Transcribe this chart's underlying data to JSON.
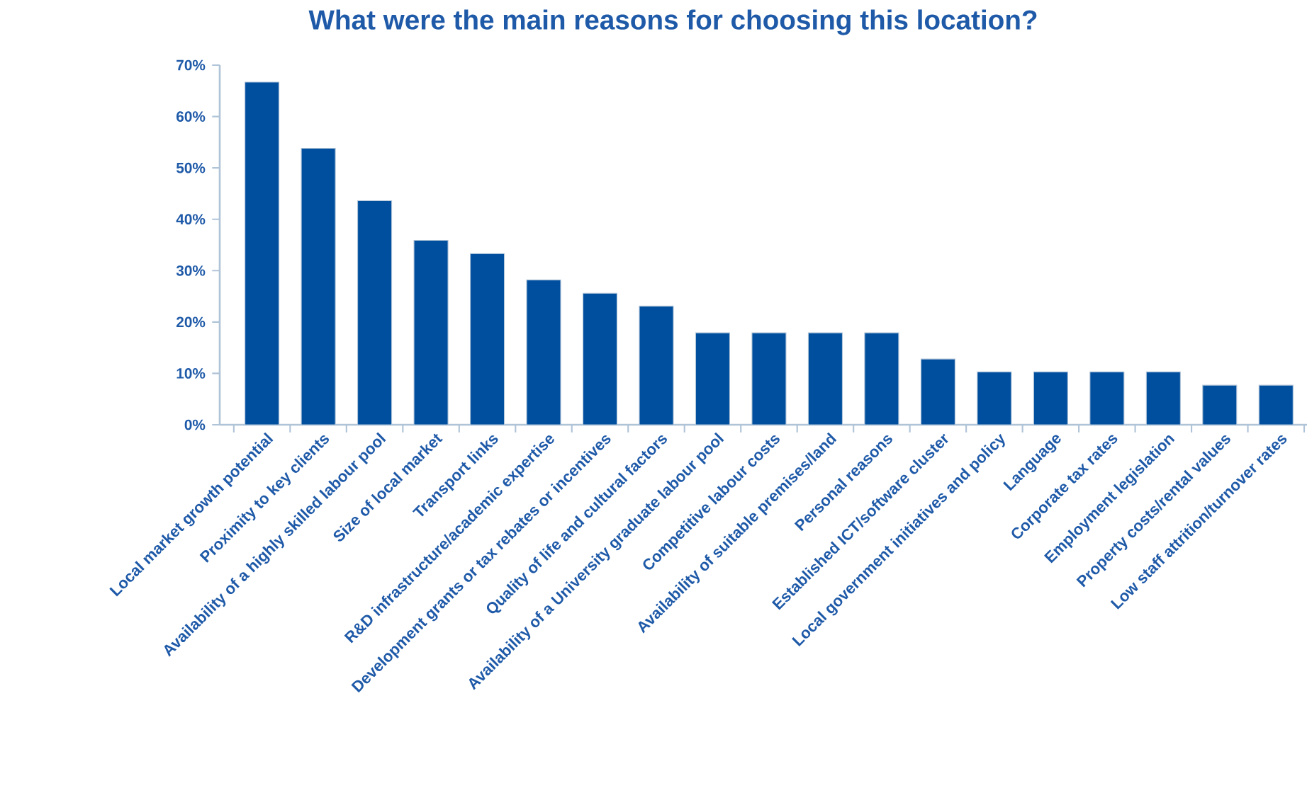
{
  "chart_data": {
    "type": "bar",
    "title": "What were the main reasons for choosing this location?",
    "categories": [
      "Local market  growth potential",
      "Proximity to key clients",
      "Availability of a highly skilled labour pool",
      "Size of local market",
      "Transport links",
      "R&D infrastructure/academic expertise",
      "Development grants or tax rebates or incentives",
      "Quality of life and cultural factors",
      "Availability of a University graduate labour pool",
      "Competitive labour costs",
      "Availability of suitable premises/land",
      "Personal reasons",
      "Established ICT/software cluster",
      "Local government initiatives and policy",
      "Language",
      "Corporate tax rates",
      "Employment legislation",
      "Property costs/rental values",
      "Low staff attrition/turnover rates"
    ],
    "values": [
      66.7,
      53.8,
      43.6,
      35.9,
      33.3,
      28.2,
      25.6,
      23.1,
      17.9,
      17.9,
      17.9,
      17.9,
      12.8,
      10.3,
      10.3,
      10.3,
      10.3,
      7.7,
      7.7
    ],
    "color": "#004f9f",
    "ylim": [
      0,
      70
    ],
    "yticks": [
      {
        "value": 0,
        "label": "0%"
      },
      {
        "value": 10,
        "label": "10%"
      },
      {
        "value": 20,
        "label": "20%"
      },
      {
        "value": 30,
        "label": "30%"
      },
      {
        "value": 40,
        "label": "40%"
      },
      {
        "value": 50,
        "label": "50%"
      },
      {
        "value": 60,
        "label": "60%"
      },
      {
        "value": 70,
        "label": "70%"
      }
    ],
    "grid": false
  }
}
